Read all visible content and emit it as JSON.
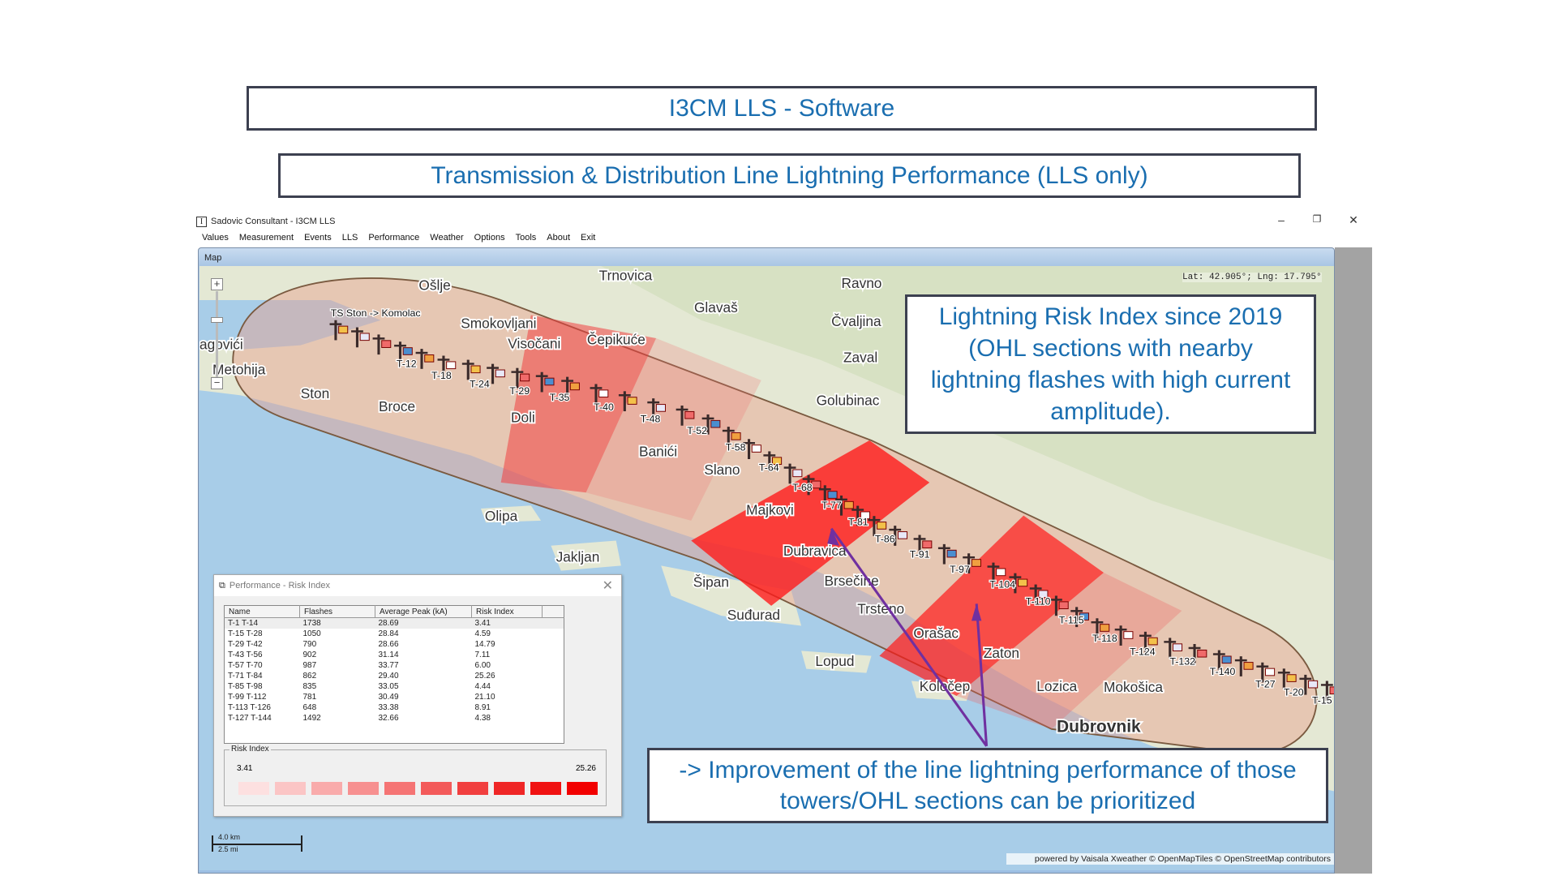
{
  "slide": {
    "title": "I3CM LLS - Software",
    "subtitle": "Transmission & Distribution Line Lightning Performance (LLS only)",
    "callout_right": "Lightning Risk Index since 2019 (OHL sections with nearby lightning flashes with high current amplitude).",
    "callout_bottom": "-> Improvement of the line lightning performance of those towers/OHL sections can be prioritized"
  },
  "window": {
    "app_icon": "I",
    "title": "Sadovic Consultant - I3CM LLS",
    "minimize": "–",
    "restore": "❐",
    "close": "✕",
    "menu": [
      "Values",
      "Measurement",
      "Events",
      "LLS",
      "Performance",
      "Weather",
      "Options",
      "Tools",
      "About",
      "Exit"
    ]
  },
  "map": {
    "tab_label": "Map",
    "latlng": "Lat: 42.905°; Lng: 17.795°",
    "attribution": "powered by Vaisala Xweather  © OpenMapTiles  © OpenStreetMap contributors",
    "scale_km": "4.0 km",
    "scale_mi": "2.5 mi",
    "zoom_in": "+",
    "zoom_out": "−",
    "line_label": "TS Ston -> Komolac",
    "places": [
      "Trnovica",
      "Ravno",
      "Ošlje",
      "Glavaš",
      "Smokovljani",
      "Čepikuće",
      "Čvaljina",
      "Visočani",
      "Zaval",
      "agovići",
      "Metohija",
      "Ston",
      "Broce",
      "Golubinac",
      "Doli",
      "Banići",
      "Slano",
      "Majkovi",
      "Olipa",
      "Dubravica",
      "Jakljan",
      "Šipan",
      "Brsečine",
      "Trsteno",
      "Suđurad",
      "Orašac",
      "Zaton",
      "Lopud",
      "Lozica",
      "Mokošica",
      "Koločep",
      "Dubrovnik"
    ],
    "towers": [
      "T-12",
      "T-18",
      "T-24",
      "T-29",
      "T-35",
      "T-40",
      "T-48",
      "T-52",
      "T-58",
      "T-64",
      "T-68",
      "T-77",
      "T-81",
      "T-86",
      "T-91",
      "T-97",
      "T-104",
      "T-110",
      "T-115",
      "T-118",
      "T-124",
      "T-132",
      "T-140",
      "T-27",
      "T-20",
      "T-15"
    ],
    "colors": {
      "sea": "#a8cde8",
      "land": "#e6e9d6",
      "corridor": "#e8a08c",
      "high": "#ff1a1a",
      "arrow": "#7030a0"
    }
  },
  "dialog": {
    "title": "Performance - Risk Index",
    "close": "✕",
    "columns": [
      "Name",
      "Flashes",
      "Average Peak (kA)",
      "Risk Index"
    ],
    "rows": [
      [
        "T-1 T-14",
        "1738",
        "28.69",
        "3.41"
      ],
      [
        "T-15 T-28",
        "1050",
        "28.84",
        "4.59"
      ],
      [
        "T-29 T-42",
        "790",
        "28.66",
        "14.79"
      ],
      [
        "T-43 T-56",
        "902",
        "31.14",
        "7.11"
      ],
      [
        "T-57 T-70",
        "987",
        "33.77",
        "6.00"
      ],
      [
        "T-71 T-84",
        "862",
        "29.40",
        "25.26"
      ],
      [
        "T-85 T-98",
        "835",
        "33.05",
        "4.44"
      ],
      [
        "T-99 T-112",
        "781",
        "30.49",
        "21.10"
      ],
      [
        "T-113 T-126",
        "648",
        "33.38",
        "8.91"
      ],
      [
        "T-127 T-144",
        "1492",
        "32.66",
        "4.38"
      ]
    ],
    "legend": {
      "title": "Risk Index",
      "min": "3.41",
      "max": "25.26",
      "swatches": [
        "#fde0e0",
        "#fbc5c5",
        "#f9abab",
        "#f79090",
        "#f57474",
        "#f35a5a",
        "#f13f3f",
        "#ef2626",
        "#f01212",
        "#f20000"
      ]
    }
  }
}
